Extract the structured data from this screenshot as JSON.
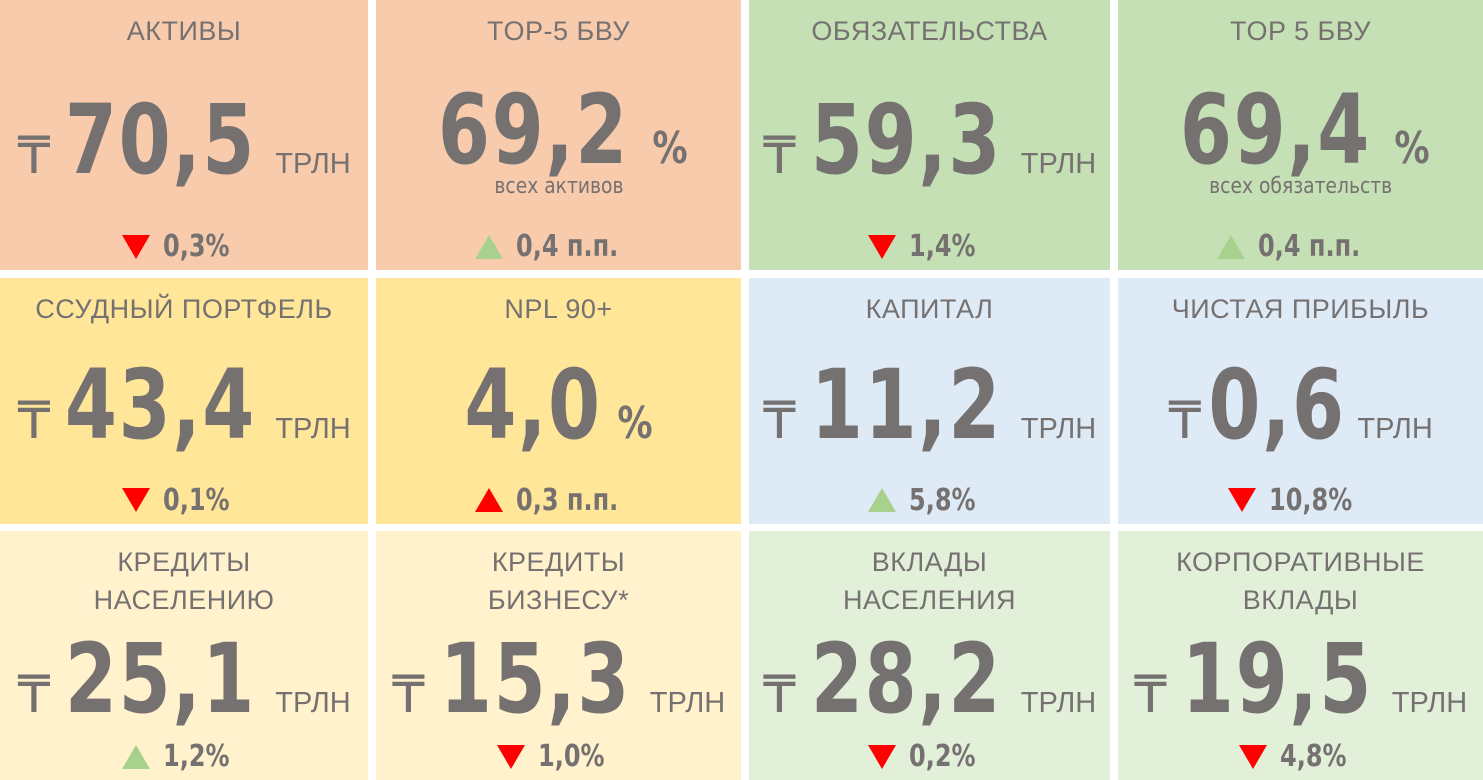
{
  "cards": [
    {
      "title": "АКТИВЫ",
      "currency": "₸",
      "value": "70,5",
      "unit": "ТРЛН",
      "change": "0,3%",
      "arrow": "down",
      "arrow_color": "#ff0000",
      "color": "#f8cbad"
    },
    {
      "title": "TOP-5 БВУ",
      "value": "69,2",
      "unit": "%",
      "subtitle": "всех активов",
      "change": "0,4 п.п.",
      "arrow": "up",
      "arrow_color": "#a9d18e",
      "color": "#f8cbad"
    },
    {
      "title": "ОБЯЗАТЕЛЬСТВА",
      "currency": "₸",
      "value": "59,3",
      "unit": "ТРЛН",
      "change": "1,4%",
      "arrow": "down",
      "arrow_color": "#ff0000",
      "color": "#c5e0b4"
    },
    {
      "title": "TOP 5 БВУ",
      "value": "69,4",
      "unit": "%",
      "subtitle": "всех обязательств",
      "change": "0,4 п.п.",
      "arrow": "up",
      "arrow_color": "#a9d18e",
      "color": "#c5e0b4"
    },
    {
      "title": "ССУДНЫЙ ПОРТФЕЛЬ",
      "currency": "₸",
      "value": "43,4",
      "unit": "ТРЛН",
      "change": "0,1%",
      "arrow": "down",
      "arrow_color": "#ff0000",
      "color": "#ffe699"
    },
    {
      "title": "NPL 90+",
      "value": "4,0",
      "unit": "%",
      "change": "0,3 п.п.",
      "arrow": "up",
      "arrow_color": "#ff0000",
      "color": "#ffe699"
    },
    {
      "title": "КАПИТАЛ",
      "currency": "₸",
      "value": "11,2",
      "unit": "ТРЛН",
      "change": "5,8%",
      "arrow": "up",
      "arrow_color": "#a9d18e",
      "color": "#deebf7"
    },
    {
      "title": "ЧИСТАЯ ПРИБЫЛЬ",
      "currency": "₸",
      "value": "0,6",
      "unit": "ТРЛН",
      "change": "10,8%",
      "arrow": "down",
      "arrow_color": "#ff0000",
      "color": "#deebf7"
    },
    {
      "title": "КРЕДИТЫ\nНАСЕЛЕНИЮ",
      "currency": "₸",
      "value": "25,1",
      "unit": "ТРЛН",
      "change": "1,2%",
      "arrow": "up",
      "arrow_color": "#a9d18e",
      "color": "#fff2cc"
    },
    {
      "title": "КРЕДИТЫ\nБИЗНЕСУ*",
      "currency": "₸",
      "value": "15,3",
      "unit": "ТРЛН",
      "change": "1,0%",
      "arrow": "down",
      "arrow_color": "#ff0000",
      "color": "#fff2cc"
    },
    {
      "title": "ВКЛАДЫ\nНАСЕЛЕНИЯ",
      "currency": "₸",
      "value": "28,2",
      "unit": "ТРЛН",
      "change": "0,2%",
      "arrow": "down",
      "arrow_color": "#ff0000",
      "color": "#e2f0d9"
    },
    {
      "title": "КОРПОРАТИВНЫЕ\nВКЛАДЫ",
      "currency": "₸",
      "value": "19,5",
      "unit": "ТРЛН",
      "change": "4,8%",
      "arrow": "down",
      "arrow_color": "#ff0000",
      "color": "#e2f0d9"
    }
  ]
}
